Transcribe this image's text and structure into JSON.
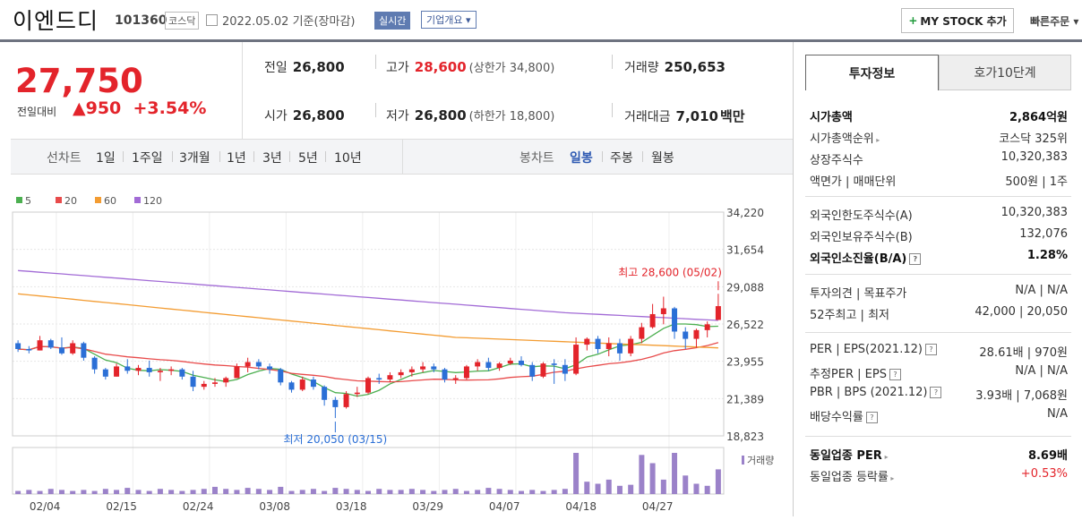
{
  "header": {
    "name": "이엔드디",
    "code": "101360",
    "market": "코스닥",
    "date": "2022.05.02  기준(장마감)",
    "realtime": "실시간",
    "corp_info": "기업개요 ▾",
    "mystock": "MY STOCK 추가",
    "quick_order": "빠른주문 ▾"
  },
  "price": {
    "current": "27,750",
    "diff_label": "전일대비",
    "diff": "▲950",
    "rate": "+3.54%"
  },
  "quote": {
    "prev_label": "전일",
    "prev": "26,800",
    "high_label": "고가",
    "high": "28,600",
    "upper_limit": "(상한가 34,800)",
    "volume_label": "거래량",
    "volume": "250,653",
    "open_label": "시가",
    "open": "26,800",
    "low_label": "저가",
    "low": "26,800",
    "lower_limit": "(하한가 18,800)",
    "amount_label": "거래대금",
    "amount": "7,010",
    "amount_unit": "백만"
  },
  "tabs": {
    "line_label": "선차트",
    "line": [
      "1일",
      "1주일",
      "3개월",
      "1년",
      "3년",
      "5년",
      "10년"
    ],
    "candle_label": "봉차트",
    "candle": [
      "일봉",
      "주봉",
      "월봉"
    ],
    "selected_candle": "일봉"
  },
  "chart_data": {
    "type": "candlestick",
    "legend": [
      "5",
      "20",
      "60",
      "120"
    ],
    "legend_colors": [
      "#4caf50",
      "#e84b4b",
      "#f39c32",
      "#a26bd6"
    ],
    "y_ticks": [
      "34,220",
      "31,654",
      "29,088",
      "26,522",
      "23,955",
      "21,389",
      "18,823"
    ],
    "ylim": [
      18823,
      34220
    ],
    "x_ticks": [
      "02/04",
      "02/15",
      "02/24",
      "03/08",
      "03/18",
      "03/29",
      "04/07",
      "04/18",
      "04/27"
    ],
    "volume_label": "거래량",
    "annotation_high": "최고 28,600 (05/02)",
    "annotation_low": "최저 20,050 (03/15)",
    "ohlc": [
      [
        25200,
        25400,
        24600,
        24800
      ],
      [
        24800,
        25000,
        24500,
        24700
      ],
      [
        24700,
        25700,
        24700,
        25400
      ],
      [
        25400,
        25500,
        24800,
        24900
      ],
      [
        24900,
        25600,
        24400,
        24500
      ],
      [
        24500,
        25400,
        24400,
        25200
      ],
      [
        25200,
        25300,
        24000,
        24200
      ],
      [
        24200,
        24300,
        23100,
        23400
      ],
      [
        23400,
        23500,
        22700,
        22900
      ],
      [
        22900,
        23800,
        22900,
        23600
      ],
      [
        23600,
        24100,
        23100,
        23300
      ],
      [
        23300,
        23700,
        23000,
        23500
      ],
      [
        23500,
        24000,
        22900,
        23200
      ],
      [
        23200,
        23500,
        22600,
        23300
      ],
      [
        23300,
        23600,
        23000,
        23400
      ],
      [
        23400,
        23500,
        22700,
        22900
      ],
      [
        22900,
        23300,
        21900,
        22200
      ],
      [
        22200,
        22600,
        22000,
        22400
      ],
      [
        22400,
        22800,
        22200,
        22500
      ],
      [
        22500,
        22900,
        22200,
        22800
      ],
      [
        22800,
        23800,
        22800,
        23600
      ],
      [
        23600,
        24200,
        23200,
        23900
      ],
      [
        23900,
        24100,
        23400,
        23600
      ],
      [
        23600,
        23800,
        23100,
        23400
      ],
      [
        23400,
        23500,
        22300,
        22500
      ],
      [
        22500,
        22600,
        21800,
        22000
      ],
      [
        22000,
        22900,
        21900,
        22700
      ],
      [
        22700,
        22900,
        22000,
        22200
      ],
      [
        22200,
        22300,
        20900,
        21300
      ],
      [
        21300,
        21500,
        20050,
        20800
      ],
      [
        20800,
        21900,
        20700,
        21700
      ],
      [
        21700,
        22200,
        21500,
        21800
      ],
      [
        21800,
        22900,
        21700,
        22800
      ],
      [
        22800,
        23100,
        22400,
        22700
      ],
      [
        22700,
        23200,
        22500,
        23000
      ],
      [
        23000,
        23400,
        22800,
        23200
      ],
      [
        23200,
        23600,
        22900,
        23400
      ],
      [
        23400,
        23900,
        23200,
        23600
      ],
      [
        23600,
        23800,
        23200,
        23400
      ],
      [
        23400,
        23500,
        22500,
        22700
      ],
      [
        22700,
        23000,
        22400,
        22800
      ],
      [
        22800,
        23700,
        22700,
        23600
      ],
      [
        23600,
        24100,
        23300,
        23900
      ],
      [
        23900,
        24200,
        23300,
        23500
      ],
      [
        23500,
        23900,
        23300,
        23800
      ],
      [
        23800,
        24200,
        23700,
        24000
      ],
      [
        24000,
        24300,
        23600,
        23700
      ],
      [
        23700,
        23900,
        22600,
        22900
      ],
      [
        22900,
        23900,
        22800,
        23800
      ],
      [
        23800,
        24100,
        22400,
        23700
      ],
      [
        23700,
        24100,
        22600,
        23100
      ],
      [
        23100,
        25600,
        23000,
        25100
      ],
      [
        25100,
        25600,
        24700,
        25500
      ],
      [
        25500,
        25700,
        24500,
        24800
      ],
      [
        24800,
        25600,
        24300,
        25200
      ],
      [
        25200,
        25500,
        24000,
        24500
      ],
      [
        24500,
        25700,
        24300,
        25500
      ],
      [
        25500,
        26600,
        25200,
        26300
      ],
      [
        26300,
        27900,
        26200,
        27200
      ],
      [
        27200,
        28400,
        26500,
        27600
      ],
      [
        27600,
        27700,
        25500,
        26000
      ],
      [
        26000,
        26300,
        24800,
        25500
      ],
      [
        25500,
        26200,
        24900,
        26100
      ],
      [
        26100,
        26700,
        25600,
        26500
      ],
      [
        26800,
        28600,
        26800,
        27750
      ]
    ],
    "volume": [
      3,
      4,
      3,
      5,
      4,
      3,
      4,
      3,
      5,
      4,
      6,
      4,
      3,
      5,
      4,
      3,
      4,
      5,
      7,
      5,
      4,
      6,
      5,
      4,
      7,
      3,
      4,
      5,
      3,
      6,
      5,
      4,
      3,
      5,
      4,
      4,
      5,
      4,
      3,
      4,
      5,
      3,
      4,
      6,
      5,
      4,
      3,
      4,
      3,
      4,
      5,
      40,
      12,
      10,
      14,
      8,
      9,
      38,
      30,
      14,
      40,
      18,
      10,
      8,
      24
    ]
  },
  "info": {
    "tab_on": "투자정보",
    "tab_off": "호가10단계",
    "rows1": [
      {
        "k": "시가총액",
        "v": "2,864억원",
        "bold": true
      },
      {
        "k": "시가총액순위",
        "v": "코스닥 325위"
      },
      {
        "k": "상장주식수",
        "v": "10,320,383"
      },
      {
        "k": "액면가 | 매매단위",
        "v": "500원 | 1주"
      }
    ],
    "rows2": [
      {
        "k": "외국인한도주식수(A)",
        "v": "10,320,383"
      },
      {
        "k": "외국인보유주식수(B)",
        "v": "132,076"
      },
      {
        "k": "외국인소진율(B/A)",
        "v": "1.28%",
        "bold": true
      }
    ],
    "rows3": [
      {
        "k": "투자의견 | 목표주가",
        "v": "N/A | N/A"
      },
      {
        "k": "52주최고 | 최저",
        "v": "42,000 | 20,050"
      }
    ],
    "rows4": [
      {
        "k": "PER | EPS(2021.12)",
        "v": "28.61배 | 970원"
      },
      {
        "k": "추정PER | EPS",
        "v": "N/A | N/A"
      },
      {
        "k": "PBR | BPS (2021.12)",
        "v": "3.93배 | 7,068원"
      },
      {
        "k": "배당수익률",
        "v": "N/A"
      }
    ],
    "rows5": [
      {
        "k": "동일업종 PER",
        "v": "8.69배",
        "bold": true
      },
      {
        "k": "동일업종 등락률",
        "v": "+0.53%"
      }
    ]
  }
}
